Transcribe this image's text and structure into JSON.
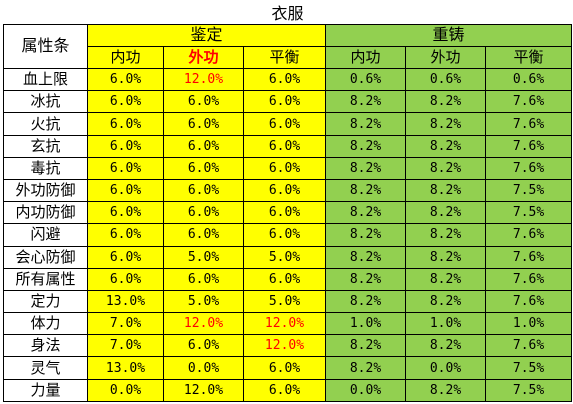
{
  "title": "衣服",
  "header": {
    "attr_label": "属性条",
    "groups": [
      "鉴定",
      "重铸"
    ],
    "sub_cols": [
      "内功",
      "外功",
      "平衡",
      "内功",
      "外功",
      "平衡"
    ]
  },
  "colors": {
    "jianding_fill": "#ffff00",
    "chongzhu_fill": "#92d050",
    "highlight_text": "#ff0000"
  },
  "rows": [
    {
      "label": "血上限",
      "values": [
        "6.0%",
        "12.0%",
        "6.0%",
        "0.6%",
        "0.6%",
        "0.6%"
      ],
      "red": [
        1
      ]
    },
    {
      "label": "冰抗",
      "values": [
        "6.0%",
        "6.0%",
        "6.0%",
        "8.2%",
        "8.2%",
        "7.6%"
      ],
      "red": []
    },
    {
      "label": "火抗",
      "values": [
        "6.0%",
        "6.0%",
        "6.0%",
        "8.2%",
        "8.2%",
        "7.6%"
      ],
      "red": []
    },
    {
      "label": "玄抗",
      "values": [
        "6.0%",
        "6.0%",
        "6.0%",
        "8.2%",
        "8.2%",
        "7.6%"
      ],
      "red": []
    },
    {
      "label": "毒抗",
      "values": [
        "6.0%",
        "6.0%",
        "6.0%",
        "8.2%",
        "8.2%",
        "7.6%"
      ],
      "red": []
    },
    {
      "label": "外功防御",
      "values": [
        "6.0%",
        "6.0%",
        "6.0%",
        "8.2%",
        "8.2%",
        "7.5%"
      ],
      "red": []
    },
    {
      "label": "内功防御",
      "values": [
        "6.0%",
        "6.0%",
        "6.0%",
        "8.2%",
        "8.2%",
        "7.5%"
      ],
      "red": []
    },
    {
      "label": "闪避",
      "values": [
        "6.0%",
        "6.0%",
        "6.0%",
        "8.2%",
        "8.2%",
        "7.6%"
      ],
      "red": []
    },
    {
      "label": "会心防御",
      "values": [
        "6.0%",
        "5.0%",
        "5.0%",
        "8.2%",
        "8.2%",
        "7.6%"
      ],
      "red": []
    },
    {
      "label": "所有属性",
      "values": [
        "6.0%",
        "6.0%",
        "6.0%",
        "8.2%",
        "8.2%",
        "7.6%"
      ],
      "red": []
    },
    {
      "label": "定力",
      "values": [
        "13.0%",
        "5.0%",
        "5.0%",
        "8.2%",
        "8.2%",
        "7.6%"
      ],
      "red": []
    },
    {
      "label": "体力",
      "values": [
        "7.0%",
        "12.0%",
        "12.0%",
        "1.0%",
        "1.0%",
        "1.0%"
      ],
      "red": [
        1,
        2
      ]
    },
    {
      "label": "身法",
      "values": [
        "7.0%",
        "6.0%",
        "12.0%",
        "8.2%",
        "8.2%",
        "7.6%"
      ],
      "red": [
        2
      ]
    },
    {
      "label": "灵气",
      "values": [
        "13.0%",
        "0.0%",
        "6.0%",
        "8.2%",
        "0.0%",
        "7.5%"
      ],
      "red": []
    },
    {
      "label": "力量",
      "values": [
        "0.0%",
        "12.0%",
        "6.0%",
        "0.0%",
        "8.2%",
        "7.5%"
      ],
      "red": []
    }
  ]
}
